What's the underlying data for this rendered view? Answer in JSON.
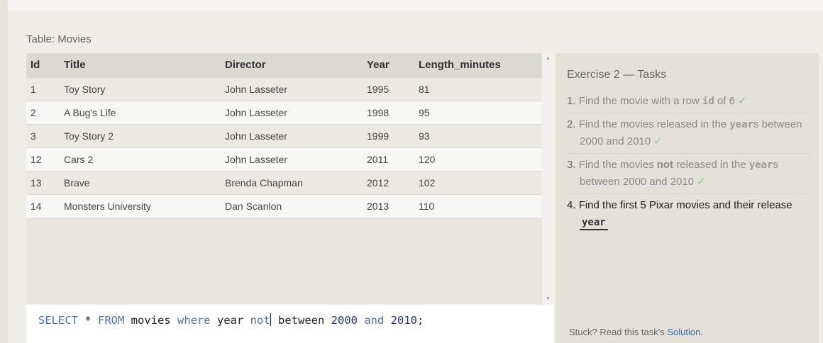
{
  "table": {
    "label": "Table: Movies",
    "columns": [
      "Id",
      "Title",
      "Director",
      "Year",
      "Length_minutes"
    ],
    "rows": [
      [
        "1",
        "Toy Story",
        "John Lasseter",
        "1995",
        "81"
      ],
      [
        "2",
        "A Bug's Life",
        "John Lasseter",
        "1998",
        "95"
      ],
      [
        "3",
        "Toy Story 2",
        "John Lasseter",
        "1999",
        "93"
      ],
      [
        "12",
        "Cars 2",
        "John Lasseter",
        "2011",
        "120"
      ],
      [
        "13",
        "Brave",
        "Brenda Chapman",
        "2012",
        "102"
      ],
      [
        "14",
        "Monsters University",
        "Dan Scanlon",
        "2013",
        "110"
      ]
    ]
  },
  "scrollbar": {
    "up_icon": "▲",
    "down_icon": "▼"
  },
  "query": {
    "p1": "SELECT",
    "p2": " * ",
    "p3": "FROM",
    "p4": " movies ",
    "p5": "where",
    "p6": " year ",
    "p7": "not",
    "p8": " between ",
    "p9": "2000",
    "p10": " ",
    "p11": "and",
    "p12": " ",
    "p13": "2010",
    "p14": ";"
  },
  "tasks": {
    "title": "Exercise 2 — Tasks",
    "check_icon": "✓",
    "items": [
      {
        "num": "1.",
        "a": "Find the movie with a row ",
        "code": "id",
        "b": " of 6"
      },
      {
        "num": "2.",
        "a": "Find the movies released in the ",
        "code": "year",
        "b": "s between 2000 and 2010"
      },
      {
        "num": "3.",
        "a": "Find the movies ",
        "bold": "not",
        "a2": " released in the ",
        "code": "year",
        "b": "s between 2000 and 2010"
      },
      {
        "num": "4.",
        "a": "Find the first 5 Pixar movies and their release ",
        "code": "year"
      }
    ],
    "stuck_text": "Stuck? Read this task's ",
    "solution_link": "Solution",
    "stuck_end": "."
  }
}
